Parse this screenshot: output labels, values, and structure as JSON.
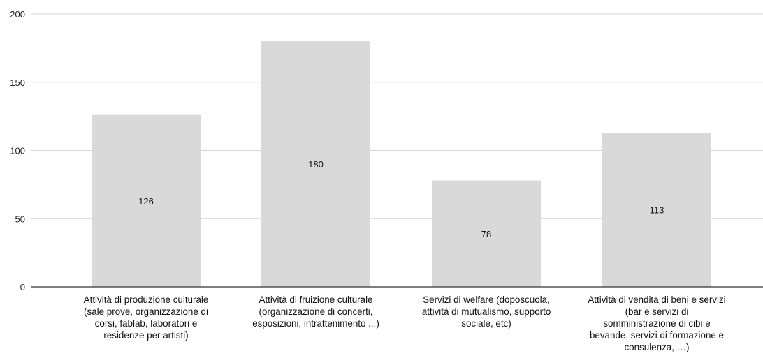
{
  "chart_data": {
    "type": "bar",
    "categories": [
      [
        "Attività di produzione culturale",
        "(sale prove, organizzazione di",
        "corsi, fablab, laboratori e",
        "residenze per artisti)"
      ],
      [
        "Attività di fruizione culturale",
        "(organizzazione di concerti,",
        "esposizioni, intrattenimento ...)"
      ],
      [
        "Servizi di welfare (doposcuola,",
        "attività di mutualismo, supporto",
        "sociale, etc)"
      ],
      [
        "Attività di vendita di beni e servizi",
        "(bar e servizi di",
        "somministrazione di cibi e",
        "bevande, servizi di formazione e",
        "consulenza, …)"
      ]
    ],
    "values": [
      126,
      180,
      78,
      113
    ],
    "data_labels": [
      "126",
      "180",
      "78",
      "113"
    ],
    "yticks": [
      "0",
      "50",
      "100",
      "150",
      "200"
    ],
    "ylim": [
      0,
      200
    ],
    "grid": true,
    "legend": "none",
    "bar_color": "#d9d9d9",
    "grid_color": "#d6d6d6",
    "axis_color": "#333333"
  }
}
